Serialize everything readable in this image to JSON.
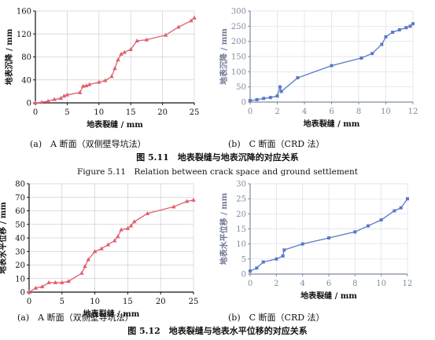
{
  "captions": {
    "fig511_cn": "图 5.11　地表裂缝与地表沉降的对应关系",
    "fig511_en": "Figure 5.11　Relation between crack space and ground settlement",
    "fig512_cn": "图 5.12　地表裂缝与地表水平位移的对应关系"
  },
  "chart_data": [
    {
      "id": "a1",
      "type": "line",
      "sublabel": "(a)　A 断面（双侧壁导坑法）",
      "xlabel": "地表裂缝 / mm",
      "ylabel": "地表沉降 / mm",
      "xlim": [
        0,
        25
      ],
      "ylim": [
        0,
        160
      ],
      "xticks": [
        0,
        5,
        10,
        15,
        20,
        25
      ],
      "yticks": [
        0,
        40,
        80,
        120,
        160
      ],
      "color": "#e0606e",
      "series": [
        {
          "x": [
            0,
            1,
            2,
            3,
            4,
            4.5,
            5,
            7,
            7.5,
            8,
            8.5,
            10,
            11,
            12,
            12.5,
            13,
            13.5,
            14,
            15,
            16,
            17.5,
            20.5,
            22.5,
            24.5,
            25
          ],
          "y": [
            0,
            1,
            3,
            6,
            8,
            12,
            14,
            18,
            29,
            30,
            32,
            36,
            39,
            46,
            60,
            75,
            85,
            88,
            93,
            108,
            110,
            118,
            132,
            143,
            148
          ]
        }
      ]
    },
    {
      "id": "b1",
      "type": "line",
      "sublabel": "(b)　C 断面（CRD 法）",
      "xlabel": "地表裂缝 / mm",
      "ylabel": "地表沉降 / mm",
      "xlim": [
        0,
        12
      ],
      "ylim": [
        0,
        300
      ],
      "xticks": [
        0,
        2,
        4,
        6,
        8,
        10,
        12
      ],
      "yticks": [
        0,
        50,
        100,
        150,
        200,
        250,
        300
      ],
      "color": "#5b78c8",
      "series": [
        {
          "x": [
            0,
            0.5,
            1,
            1.5,
            2,
            2.2,
            2.3,
            3.5,
            6,
            8.2,
            9,
            9.7,
            10,
            10.5,
            11,
            11.5,
            11.8,
            12
          ],
          "y": [
            5,
            8,
            12,
            15,
            20,
            50,
            35,
            80,
            120,
            145,
            160,
            190,
            215,
            230,
            238,
            245,
            250,
            258
          ]
        }
      ]
    },
    {
      "id": "a2",
      "type": "line",
      "sublabel": "(a)　A 断面（双侧壁导坑法）",
      "xlabel": "地表裂缝 / mm",
      "ylabel": "地表水平位移 / mm",
      "xlim": [
        0,
        25
      ],
      "ylim": [
        0,
        80
      ],
      "xticks": [
        0,
        5,
        10,
        15,
        20,
        25
      ],
      "yticks": [
        0,
        10,
        20,
        30,
        40,
        50,
        60,
        70,
        80
      ],
      "color": "#e0606e",
      "series": [
        {
          "x": [
            0,
            1,
            2,
            3,
            4,
            5,
            6,
            8,
            8.5,
            9,
            10,
            11,
            12,
            13,
            13.5,
            14,
            15,
            15.5,
            16,
            18,
            22,
            24,
            25
          ],
          "y": [
            0,
            3,
            4,
            7,
            7,
            7,
            8,
            14,
            19,
            24,
            30,
            32,
            35,
            38,
            41,
            46,
            47,
            49,
            52,
            58,
            63,
            67,
            68
          ]
        }
      ]
    },
    {
      "id": "b2",
      "type": "line",
      "sublabel": "(b)　C 断面（CRD 法）",
      "xlabel": "地表裂缝 / mm",
      "ylabel": "地表水平位移 / mm",
      "xlim": [
        0,
        12
      ],
      "ylim": [
        0,
        30
      ],
      "xticks": [
        0,
        2,
        4,
        6,
        8,
        10,
        12
      ],
      "yticks": [
        0,
        5,
        10,
        15,
        20,
        25,
        30
      ],
      "color": "#5b78c8",
      "series": [
        {
          "x": [
            0,
            0.5,
            1,
            2,
            2.5,
            2.6,
            4,
            6,
            8,
            9,
            10,
            11,
            11.5,
            12
          ],
          "y": [
            1,
            2,
            4,
            5,
            6,
            8,
            10,
            12,
            14,
            16,
            18,
            21,
            22,
            25
          ]
        }
      ]
    }
  ]
}
